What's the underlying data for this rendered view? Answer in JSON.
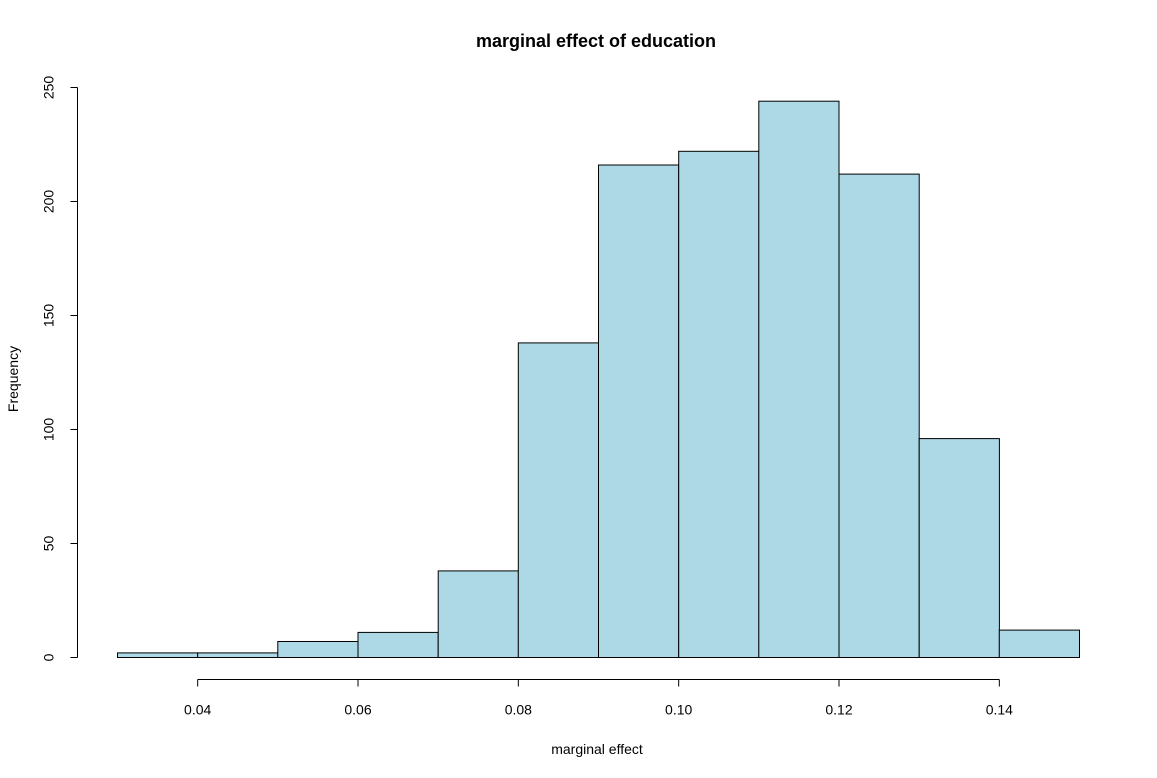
{
  "chart_data": {
    "type": "bar",
    "subtype": "histogram",
    "title": "marginal effect of education",
    "xlabel": "marginal effect",
    "ylabel": "Frequency",
    "bin_edges": [
      0.03,
      0.04,
      0.05,
      0.06,
      0.07,
      0.08,
      0.09,
      0.1,
      0.11,
      0.12,
      0.13,
      0.14,
      0.15
    ],
    "values": [
      2,
      2,
      7,
      11,
      38,
      138,
      216,
      222,
      244,
      212,
      96,
      12
    ],
    "xlim": [
      0.03,
      0.15
    ],
    "ylim": [
      0,
      250
    ],
    "x_ticks": [
      "0.04",
      "0.06",
      "0.08",
      "0.10",
      "0.12",
      "0.14"
    ],
    "y_ticks": [
      "0",
      "50",
      "100",
      "150",
      "200",
      "250"
    ],
    "bar_color": "#add8e6",
    "border_color": "#000000",
    "grid": false,
    "legend": "none"
  }
}
